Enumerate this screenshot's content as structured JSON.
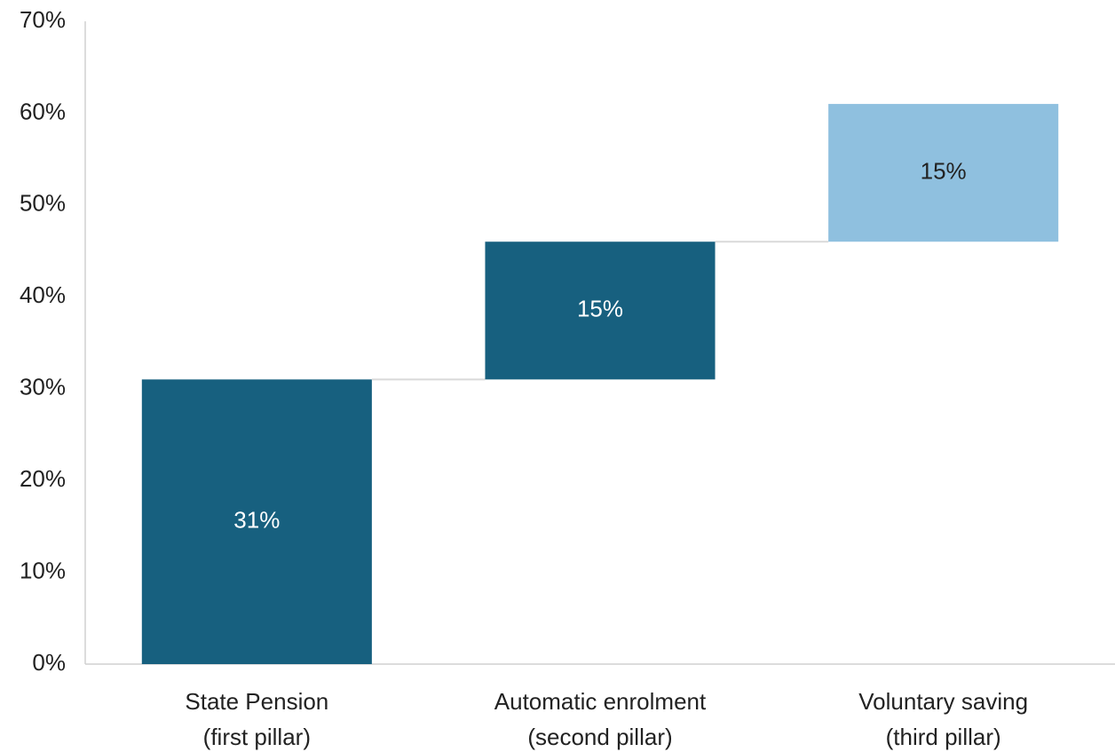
{
  "chart_data": {
    "type": "waterfall",
    "categories": [
      [
        "State Pension",
        "(first pillar)"
      ],
      [
        "Automatic enrolment",
        "(second pillar)"
      ],
      [
        "Voluntary saving",
        "(third pillar)"
      ]
    ],
    "values": [
      31,
      15,
      15
    ],
    "value_labels": [
      "31%",
      "15%",
      "15%"
    ],
    "colors": [
      "#17607f",
      "#17607f",
      "#8fc0df"
    ],
    "label_colors": [
      "#ffffff",
      "#ffffff",
      "#222222"
    ],
    "ylim": [
      0,
      70
    ],
    "yticks": [
      {
        "value": 0,
        "label": "0%"
      },
      {
        "value": 10,
        "label": "10%"
      },
      {
        "value": 20,
        "label": "20%"
      },
      {
        "value": 30,
        "label": "30%"
      },
      {
        "value": 40,
        "label": "40%"
      },
      {
        "value": 50,
        "label": "50%"
      },
      {
        "value": 60,
        "label": "60%"
      },
      {
        "value": 70,
        "label": "70%"
      }
    ],
    "grid": false
  }
}
